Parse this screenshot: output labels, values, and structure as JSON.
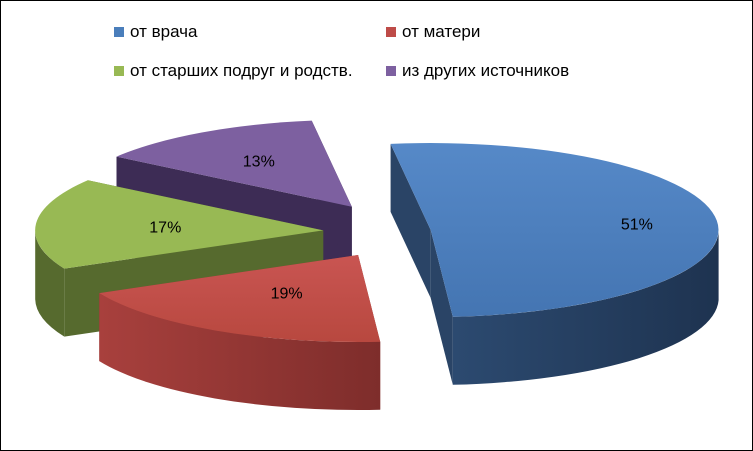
{
  "chart_data": {
    "type": "pie",
    "title": "",
    "categories": [
      "от врача",
      "от матери",
      "от старших подруг и родств.",
      "из других источников"
    ],
    "values": [
      51,
      19,
      17,
      13
    ],
    "data_labels": [
      "51%",
      "19%",
      "17%",
      "13%"
    ],
    "colors": [
      "#4a7ebb",
      "#be4b48",
      "#98b954",
      "#7d60a0"
    ],
    "side_colors": [
      "#2a4466",
      "#8a3230",
      "#566a2e",
      "#3d2c55"
    ],
    "style": "3d-exploded",
    "legend": "top"
  }
}
